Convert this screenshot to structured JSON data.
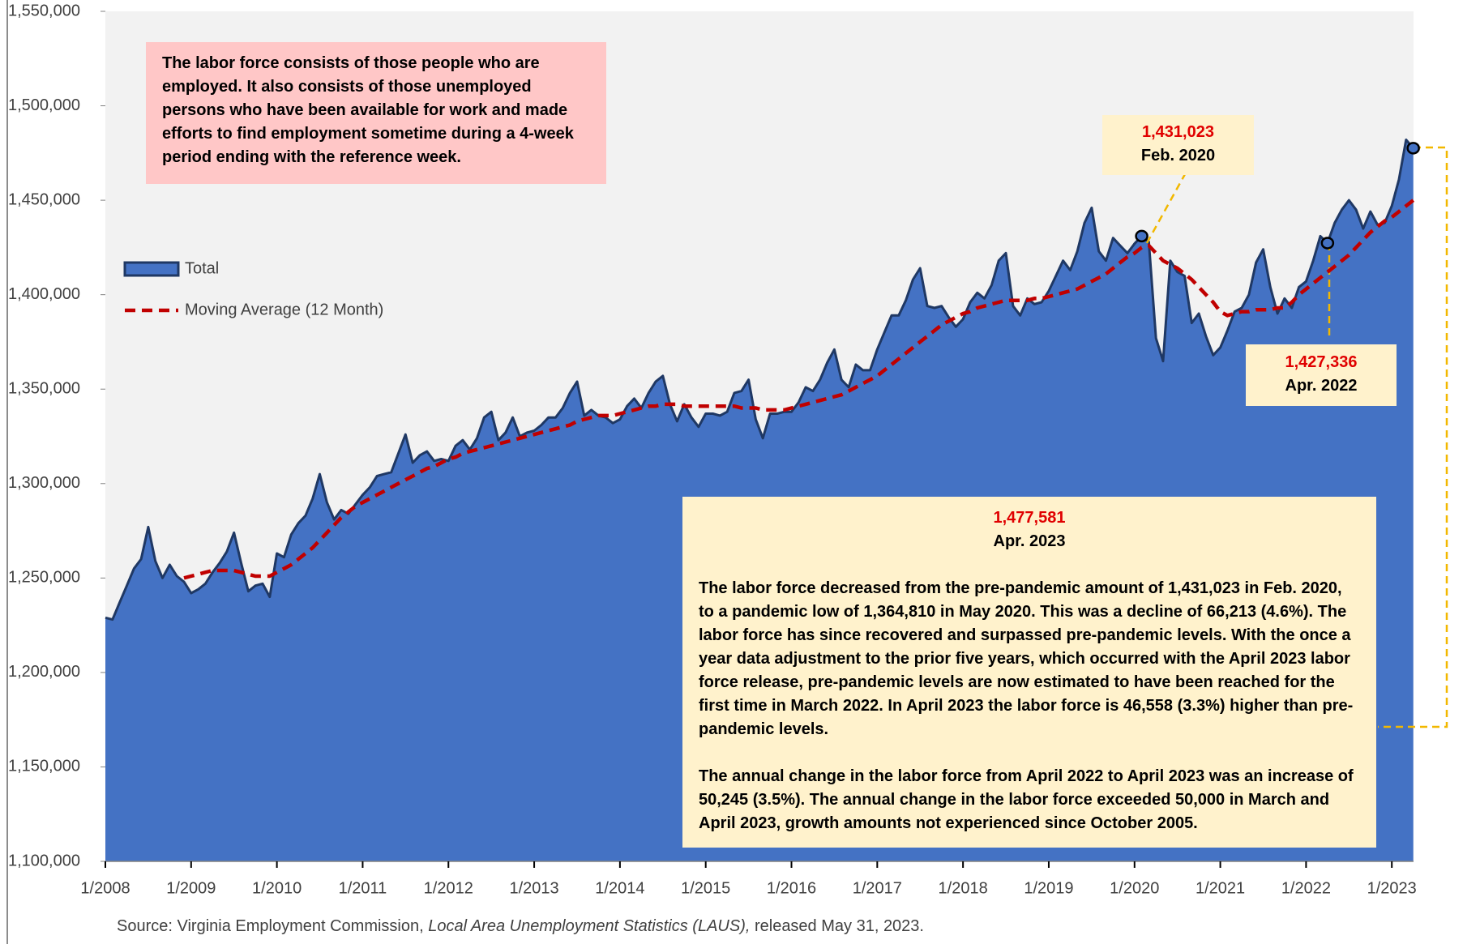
{
  "chart_data": {
    "type": "area",
    "x": [
      "1/2008",
      "2/2008",
      "3/2008",
      "4/2008",
      "5/2008",
      "6/2008",
      "7/2008",
      "8/2008",
      "9/2008",
      "10/2008",
      "11/2008",
      "12/2008",
      "1/2009",
      "2/2009",
      "3/2009",
      "4/2009",
      "5/2009",
      "6/2009",
      "7/2009",
      "8/2009",
      "9/2009",
      "10/2009",
      "11/2009",
      "12/2009",
      "1/2010",
      "2/2010",
      "3/2010",
      "4/2010",
      "5/2010",
      "6/2010",
      "7/2010",
      "8/2010",
      "9/2010",
      "10/2010",
      "11/2010",
      "12/2010",
      "1/2011",
      "2/2011",
      "3/2011",
      "4/2011",
      "5/2011",
      "6/2011",
      "7/2011",
      "8/2011",
      "9/2011",
      "10/2011",
      "11/2011",
      "12/2011",
      "1/2012",
      "2/2012",
      "3/2012",
      "4/2012",
      "5/2012",
      "6/2012",
      "7/2012",
      "8/2012",
      "9/2012",
      "10/2012",
      "11/2012",
      "12/2012",
      "1/2013",
      "2/2013",
      "3/2013",
      "4/2013",
      "5/2013",
      "6/2013",
      "7/2013",
      "8/2013",
      "9/2013",
      "10/2013",
      "11/2013",
      "12/2013",
      "1/2014",
      "2/2014",
      "3/2014",
      "4/2014",
      "5/2014",
      "6/2014",
      "7/2014",
      "8/2014",
      "9/2014",
      "10/2014",
      "11/2014",
      "12/2014",
      "1/2015",
      "2/2015",
      "3/2015",
      "4/2015",
      "5/2015",
      "6/2015",
      "7/2015",
      "8/2015",
      "9/2015",
      "10/2015",
      "11/2015",
      "12/2015",
      "1/2016",
      "2/2016",
      "3/2016",
      "4/2016",
      "5/2016",
      "6/2016",
      "7/2016",
      "8/2016",
      "9/2016",
      "10/2016",
      "11/2016",
      "12/2016",
      "1/2017",
      "2/2017",
      "3/2017",
      "4/2017",
      "5/2017",
      "6/2017",
      "7/2017",
      "8/2017",
      "9/2017",
      "10/2017",
      "11/2017",
      "12/2017",
      "1/2018",
      "2/2018",
      "3/2018",
      "4/2018",
      "5/2018",
      "6/2018",
      "7/2018",
      "8/2018",
      "9/2018",
      "10/2018",
      "11/2018",
      "12/2018",
      "1/2019",
      "2/2019",
      "3/2019",
      "4/2019",
      "5/2019",
      "6/2019",
      "7/2019",
      "8/2019",
      "9/2019",
      "10/2019",
      "11/2019",
      "12/2019",
      "1/2020",
      "2/2020",
      "3/2020",
      "4/2020",
      "5/2020",
      "6/2020",
      "7/2020",
      "8/2020",
      "9/2020",
      "10/2020",
      "11/2020",
      "12/2020",
      "1/2021",
      "2/2021",
      "3/2021",
      "4/2021",
      "5/2021",
      "6/2021",
      "7/2021",
      "8/2021",
      "9/2021",
      "10/2021",
      "11/2021",
      "12/2021",
      "1/2022",
      "2/2022",
      "3/2022",
      "4/2022",
      "5/2022",
      "6/2022",
      "7/2022",
      "8/2022",
      "9/2022",
      "10/2022",
      "11/2022",
      "12/2022",
      "1/2023",
      "2/2023",
      "3/2023",
      "4/2023"
    ],
    "series": [
      {
        "name": "Total",
        "color": "#4472c4",
        "values": [
          1229000,
          1228000,
          1237000,
          1246000,
          1255000,
          1260000,
          1277000,
          1259000,
          1250000,
          1257000,
          1251000,
          1248000,
          1242000,
          1244000,
          1247000,
          1253000,
          1258000,
          1264000,
          1274000,
          1258000,
          1243000,
          1246000,
          1247000,
          1240000,
          1263000,
          1261000,
          1273000,
          1279000,
          1283000,
          1292000,
          1305000,
          1290000,
          1281000,
          1286000,
          1284000,
          1289000,
          1294000,
          1298000,
          1304000,
          1305000,
          1306000,
          1316000,
          1326000,
          1311000,
          1315000,
          1317000,
          1312000,
          1313000,
          1312000,
          1320000,
          1323000,
          1318000,
          1324000,
          1335000,
          1338000,
          1323000,
          1327000,
          1335000,
          1325000,
          1327000,
          1328000,
          1331000,
          1335000,
          1335000,
          1340000,
          1348000,
          1354000,
          1336000,
          1339000,
          1336000,
          1335000,
          1332000,
          1334000,
          1341000,
          1345000,
          1340000,
          1348000,
          1354000,
          1357000,
          1342000,
          1333000,
          1342000,
          1335000,
          1330000,
          1337000,
          1337000,
          1336000,
          1338000,
          1348000,
          1349000,
          1355000,
          1334000,
          1324000,
          1337000,
          1337000,
          1338000,
          1338000,
          1343000,
          1351000,
          1349000,
          1355000,
          1364000,
          1371000,
          1355000,
          1351000,
          1363000,
          1360000,
          1360000,
          1371000,
          1380000,
          1389000,
          1389000,
          1397000,
          1408000,
          1414000,
          1394000,
          1393000,
          1394000,
          1388000,
          1383000,
          1387000,
          1396000,
          1401000,
          1398000,
          1405000,
          1418000,
          1422000,
          1394000,
          1389000,
          1398000,
          1395000,
          1396000,
          1402000,
          1410000,
          1418000,
          1413000,
          1423000,
          1438000,
          1446000,
          1423000,
          1418000,
          1430000,
          1426000,
          1422000,
          1427000,
          1431023,
          1428000,
          1377000,
          1364810,
          1418000,
          1412000,
          1410000,
          1385000,
          1390000,
          1378000,
          1368000,
          1372000,
          1381000,
          1391000,
          1393000,
          1400000,
          1417000,
          1424000,
          1404000,
          1390000,
          1398000,
          1393000,
          1404000,
          1407000,
          1418000,
          1431000,
          1427336,
          1438000,
          1445000,
          1450000,
          1445000,
          1435000,
          1444000,
          1437000,
          1438000,
          1447000,
          1461000,
          1482000,
          1477581
        ]
      },
      {
        "name": "Moving Average (12 Month)",
        "color": "#c00000",
        "values": [
          null,
          null,
          null,
          null,
          null,
          null,
          null,
          null,
          null,
          null,
          null,
          1250000,
          1251000,
          1252000,
          1253000,
          1254000,
          1254000,
          1254000,
          1254000,
          1253000,
          1252000,
          1251000,
          1251000,
          1251000,
          1253000,
          1255000,
          1257000,
          1260000,
          1263000,
          1266000,
          1270000,
          1274000,
          1278000,
          1282000,
          1285000,
          1288000,
          1290000,
          1292000,
          1294000,
          1296000,
          1298000,
          1300000,
          1302000,
          1304000,
          1306000,
          1308000,
          1309000,
          1311000,
          1313000,
          1314000,
          1316000,
          1317000,
          1318000,
          1319000,
          1320000,
          1321000,
          1322000,
          1323000,
          1324000,
          1325000,
          1326000,
          1327000,
          1328000,
          1329000,
          1330000,
          1331000,
          1333000,
          1334000,
          1335000,
          1336000,
          1336000,
          1336000,
          1337000,
          1338000,
          1339000,
          1340000,
          1341000,
          1341000,
          1342000,
          1342000,
          1342000,
          1341000,
          1341000,
          1341000,
          1341000,
          1341000,
          1341000,
          1341000,
          1341000,
          1340000,
          1340000,
          1340000,
          1339000,
          1339000,
          1339000,
          1339000,
          1340000,
          1341000,
          1342000,
          1343000,
          1344000,
          1345000,
          1346000,
          1347000,
          1349000,
          1351000,
          1353000,
          1355000,
          1357000,
          1360000,
          1363000,
          1366000,
          1369000,
          1372000,
          1375000,
          1378000,
          1381000,
          1384000,
          1386000,
          1388000,
          1390000,
          1391000,
          1393000,
          1394000,
          1395000,
          1396000,
          1397000,
          1397000,
          1397000,
          1397000,
          1398000,
          1398000,
          1399000,
          1400000,
          1401000,
          1402000,
          1403000,
          1405000,
          1407000,
          1409000,
          1411000,
          1414000,
          1417000,
          1420000,
          1422000,
          1425000,
          1426000,
          1422000,
          1418000,
          1416000,
          1414000,
          1411000,
          1408000,
          1404000,
          1400000,
          1396000,
          1391000,
          1389000,
          1390000,
          1391000,
          1391000,
          1392000,
          1392000,
          1392000,
          1393000,
          1393000,
          1396000,
          1400000,
          1403000,
          1406000,
          1409000,
          1412000,
          1415000,
          1418000,
          1421000,
          1425000,
          1429000,
          1433000,
          1436000,
          1439000,
          1441000,
          1444000,
          1447000,
          1450000
        ]
      }
    ],
    "ylim": [
      1100000,
      1550000
    ],
    "yticks": [
      {
        "value": 1100000,
        "label": "1,100,000"
      },
      {
        "value": 1150000,
        "label": "1,150,000"
      },
      {
        "value": 1200000,
        "label": "1,200,000"
      },
      {
        "value": 1250000,
        "label": "1,250,000"
      },
      {
        "value": 1300000,
        "label": "1,300,000"
      },
      {
        "value": 1350000,
        "label": "1,350,000"
      },
      {
        "value": 1400000,
        "label": "1,400,000"
      },
      {
        "value": 1450000,
        "label": "1,450,000"
      },
      {
        "value": 1500000,
        "label": "1,500,000"
      },
      {
        "value": 1550000,
        "label": "1,550,000"
      }
    ],
    "xticks": [
      "1/2008",
      "1/2009",
      "1/2010",
      "1/2011",
      "1/2012",
      "1/2013",
      "1/2014",
      "1/2015",
      "1/2016",
      "1/2017",
      "1/2018",
      "1/2019",
      "1/2020",
      "1/2021",
      "1/2022",
      "1/2023"
    ],
    "grid": false,
    "legend": "left",
    "definition": "The labor force consists of those people who are employed.  It also consists of those unemployed persons who have been available for work and made efforts to find employment sometime during a 4-week period ending with the reference week.",
    "annotations": [
      {
        "label": "1,431,023",
        "date": "Feb. 2020"
      },
      {
        "label": "1,427,336",
        "date": "Apr. 2022"
      },
      {
        "label": "1,477,581",
        "date": "Apr. 2023",
        "notes": [
          "The labor force decreased from the pre-pandemic amount of 1,431,023 in Feb. 2020, to a pandemic low of 1,364,810 in May 2020.  This was a decline of 66,213 (4.6%).  The labor force has since recovered and surpassed pre-pandemic levels.  With the once a year data adjustment to the prior five years, which occurred with the April 2023 labor force release, pre-pandemic levels are now estimated to have been reached for the first time in March 2022.  In April 2023 the labor force is 46,558 (3.3%) higher than pre-pandemic levels.",
          "The annual change in the labor force from April 2022 to April 2023 was an increase of 50,245 (3.5%).  The annual change in the labor force exceeded 50,000 in March and April 2023, growth amounts not experienced since October 2005."
        ]
      }
    ],
    "source": [
      "Source: Virginia Employment Commission, ",
      "Local Area Unemployment Statistics (LAUS),",
      " released May 31, 2023."
    ]
  }
}
